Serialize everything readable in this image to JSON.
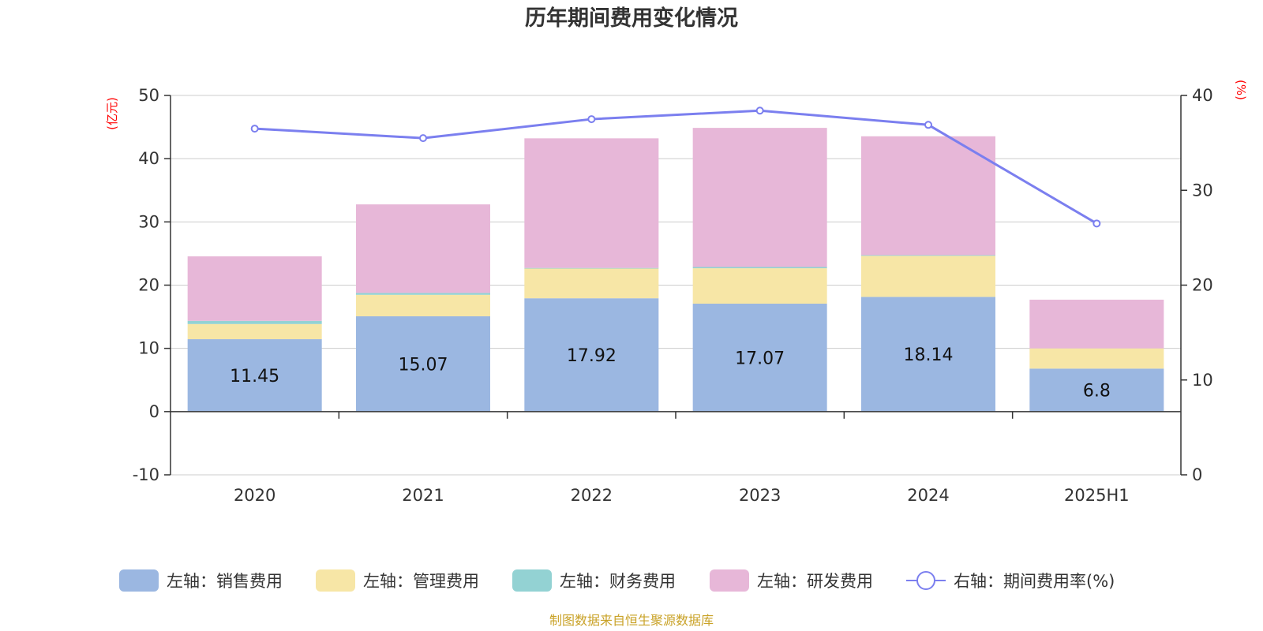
{
  "chart_data": {
    "type": "bar",
    "title": "历年期间费用变化情况",
    "categories": [
      "2020",
      "2021",
      "2022",
      "2023",
      "2024",
      "2025H1"
    ],
    "left_axis": {
      "unit_label": "(亿元)",
      "min": -10,
      "max": 50,
      "ticks": [
        -10,
        0,
        10,
        20,
        30,
        40,
        50
      ]
    },
    "right_axis": {
      "unit_label": "(%)",
      "min": 0,
      "max": 40,
      "ticks": [
        0,
        10,
        20,
        30,
        40
      ]
    },
    "series": [
      {
        "name": "左轴：销售费用",
        "kind": "bar",
        "axis": "left",
        "color": "#9bb7e1",
        "values": [
          11.45,
          15.07,
          17.92,
          17.07,
          18.14,
          6.8
        ],
        "labels": [
          "11.45",
          "15.07",
          "17.92",
          "17.07",
          "18.14",
          "6.8"
        ]
      },
      {
        "name": "左轴：管理费用",
        "kind": "bar",
        "axis": "left",
        "color": "#f7e6a6",
        "values": [
          2.4,
          3.4,
          4.7,
          5.6,
          6.5,
          3.2
        ]
      },
      {
        "name": "左轴：财务费用",
        "kind": "bar",
        "axis": "left",
        "color": "#93d2d3",
        "values": [
          0.5,
          0.3,
          0.1,
          0.2,
          0.1,
          0.0
        ]
      },
      {
        "name": "左轴：研发费用",
        "kind": "bar",
        "axis": "left",
        "color": "#e7b7d8",
        "values": [
          10.2,
          14.0,
          20.5,
          22.0,
          18.8,
          7.7
        ]
      },
      {
        "name": "右轴：期间费用率(%)",
        "kind": "line",
        "axis": "right",
        "color": "#7b7fef",
        "values": [
          36.5,
          35.5,
          37.5,
          38.4,
          36.9,
          26.5
        ]
      }
    ],
    "legend_position": "bottom",
    "grid": true,
    "source": "制图数据来自恒生聚源数据库"
  }
}
